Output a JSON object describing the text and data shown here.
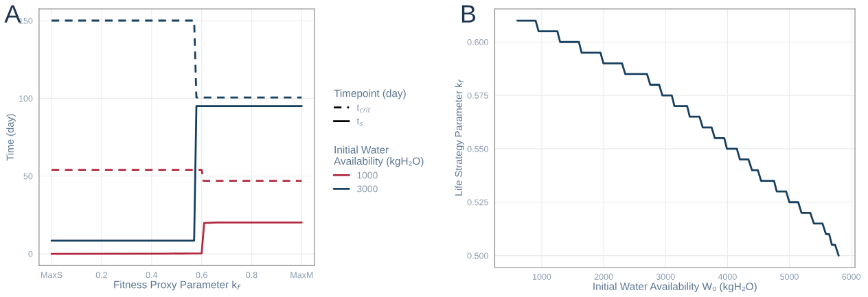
{
  "chart_data": [
    {
      "type": "line",
      "title": "A",
      "xlabel": "Fitness Proxy Parameter k$_{f}$",
      "ylabel": "Time (day)",
      "xlim": [
        -0.05,
        1.05
      ],
      "xticks": [
        {
          "value": 0,
          "label": "MaxS"
        },
        0.2,
        0.4,
        0.6,
        0.8,
        {
          "value": 1,
          "label": "MaxM"
        }
      ],
      "ylim": [
        -7.5,
        157.5
      ],
      "yticks": [
        0,
        50,
        100,
        150
      ],
      "grid": true,
      "legend": "right",
      "legend_title": [
        "Timepoint (day)",
        "Initial Water\nAvailability (kgH₂O)"
      ],
      "annotations": [
        "t$_{crit}$",
        "t$_{s}$"
      ],
      "series": [
        {
          "color": "#b22a3f",
          "line_style": "dashed",
          "x": [
            0,
            0.6,
            0.607,
            1
          ],
          "values": [
            54,
            54,
            47,
            47
          ]
        },
        {
          "name": "1000",
          "color": "#b22a3f",
          "line_style": "solid",
          "x": [
            0,
            0.45,
            0.6,
            0.61,
            0.66,
            1
          ],
          "values": [
            0,
            0.1,
            0.3,
            19.8,
            20.2,
            20.2
          ]
        },
        {
          "color": "#173f5f",
          "line_style": "dashed",
          "x": [
            0,
            0.57,
            0.579,
            1
          ],
          "values": [
            150,
            150,
            100.5,
            100.5
          ]
        },
        {
          "name": "3000",
          "color": "#173f5f",
          "line_style": "solid",
          "x": [
            0,
            0.57,
            0.579,
            1
          ],
          "values": [
            8.5,
            8.5,
            95,
            95
          ]
        }
      ]
    },
    {
      "type": "line",
      "title": "B",
      "xlabel": "Initial Water Availability W₀ (kgH₂O)",
      "ylabel": "Life Strategy Parameter k$_{f}$",
      "xlim": [
        240,
        6060
      ],
      "xticks": [
        1000,
        2000,
        3000,
        4000,
        5000,
        6000
      ],
      "ylim": [
        0.4945,
        0.6155
      ],
      "yticks": [
        {
          "value": 0.5,
          "label": "0.500"
        },
        {
          "value": 0.525,
          "label": "0.525"
        },
        {
          "value": 0.55,
          "label": "0.550"
        },
        {
          "value": 0.575,
          "label": "0.575"
        },
        {
          "value": 0.6,
          "label": "0.600"
        }
      ],
      "grid": true,
      "line_style": "solid",
      "series": [
        {
          "color": "#173f5f",
          "x": [
            604,
            900,
            948,
            1252,
            1296,
            1600,
            1643,
            1948,
            1996,
            2296,
            2348,
            2700,
            2752,
            2896,
            2948,
            3100,
            3143,
            3348,
            3391,
            3548,
            3600,
            3743,
            3796,
            3948,
            3991,
            4152,
            4200,
            4339,
            4396,
            4491,
            4543,
            4752,
            4796,
            4948,
            5000,
            5143,
            5196,
            5339,
            5396,
            5535,
            5591,
            5643,
            5687,
            5739,
            5796
          ],
          "values": [
            0.61,
            0.61,
            0.605,
            0.605,
            0.6,
            0.6,
            0.595,
            0.595,
            0.59,
            0.59,
            0.585,
            0.585,
            0.58,
            0.58,
            0.575,
            0.575,
            0.57,
            0.57,
            0.565,
            0.565,
            0.56,
            0.56,
            0.555,
            0.555,
            0.55,
            0.55,
            0.545,
            0.545,
            0.54,
            0.54,
            0.535,
            0.535,
            0.53,
            0.53,
            0.525,
            0.525,
            0.52,
            0.52,
            0.515,
            0.515,
            0.51,
            0.51,
            0.505,
            0.505,
            0.5
          ]
        }
      ]
    }
  ]
}
